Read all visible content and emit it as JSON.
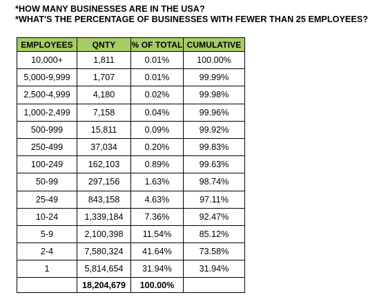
{
  "questions": [
    "*HOW MANY BUSINESSES ARE IN THE USA?",
    "*WHAT'S THE PERCENTAGE OF BUSINESSES WITH FEWER THAN 25 EMPLOYEES?"
  ],
  "table": {
    "headers": [
      "EMPLOYEES",
      "QNTY",
      "% OF TOTAL",
      "CUMULATIVE"
    ],
    "rows": [
      [
        "10,000+",
        "1,811",
        "0.01%",
        "100.00%"
      ],
      [
        "5,000-9,999",
        "1,707",
        "0.01%",
        "99.99%"
      ],
      [
        "2,500-4,999",
        "4,180",
        "0.02%",
        "99.98%"
      ],
      [
        "1,000-2,499",
        "7,158",
        "0.04%",
        "99.96%"
      ],
      [
        "500-999",
        "15,811",
        "0.09%",
        "99.92%"
      ],
      [
        "250-499",
        "37,034",
        "0.20%",
        "99.83%"
      ],
      [
        "100-249",
        "162,103",
        "0.89%",
        "99.63%"
      ],
      [
        "50-99",
        "297,156",
        "1.63%",
        "98.74%"
      ],
      [
        "25-49",
        "843,158",
        "4.63%",
        "97.11%"
      ],
      [
        "10-24",
        "1,339,184",
        "7.36%",
        "92.47%"
      ],
      [
        "5-9",
        "2,100,398",
        "11.54%",
        "85.12%"
      ],
      [
        "2-4",
        "7,580,324",
        "41.64%",
        "73.58%"
      ],
      [
        "1",
        "5,814,654",
        "31.94%",
        "31.94%"
      ]
    ],
    "total": [
      "",
      "18,204,679",
      "100.00%",
      ""
    ]
  },
  "colors": {
    "header_bg": "#a6cc66",
    "border": "#000000",
    "text": "#000000"
  }
}
